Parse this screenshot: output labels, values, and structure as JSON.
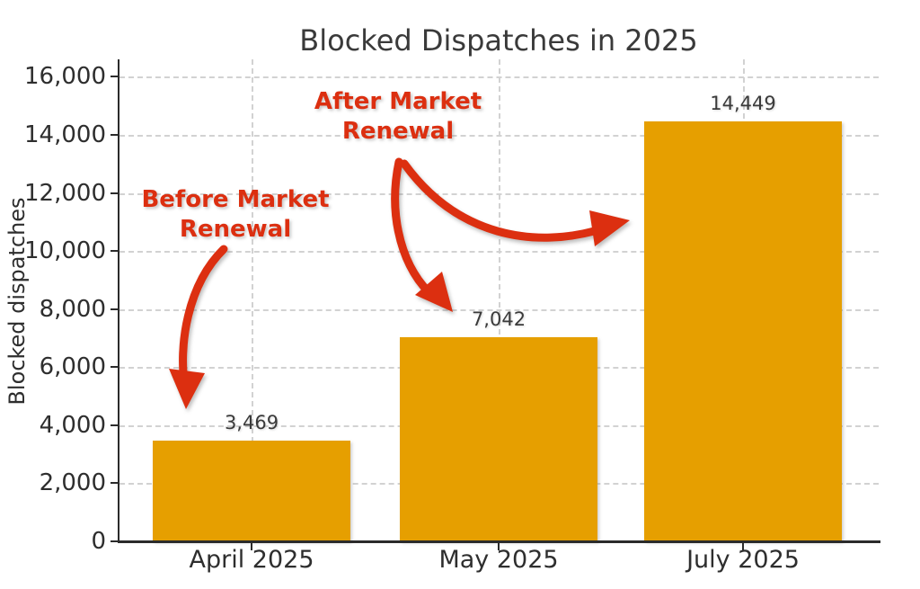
{
  "chart_data": {
    "type": "bar",
    "title": "Blocked Dispatches in 2025",
    "xlabel": "",
    "ylabel": "Blocked dispatches",
    "categories": [
      "April 2025",
      "May 2025",
      "July 2025"
    ],
    "values": [
      3469,
      7042,
      14449
    ],
    "value_labels": [
      "3,469",
      "7,042",
      "14,449"
    ],
    "ylim": [
      0,
      16600
    ],
    "yticks": [
      0,
      2000,
      4000,
      6000,
      8000,
      10000,
      12000,
      14000,
      16000
    ],
    "ytick_labels": [
      "0",
      "2,000",
      "4,000",
      "6,000",
      "8,000",
      "10,000",
      "12,000",
      "14,000",
      "16,000"
    ],
    "grid": "dashed gridlines on both axes",
    "legend": "none",
    "bar_color": "#E69F00",
    "annotation_color": "#DC2F10",
    "text_color": "#3a3a3a",
    "annotations": [
      {
        "text": "Before Market\nRenewal",
        "points_to": "April 2025 bar"
      },
      {
        "text": "After Market\nRenewal",
        "points_to": "May 2025 bar and July 2025 bar"
      }
    ]
  }
}
